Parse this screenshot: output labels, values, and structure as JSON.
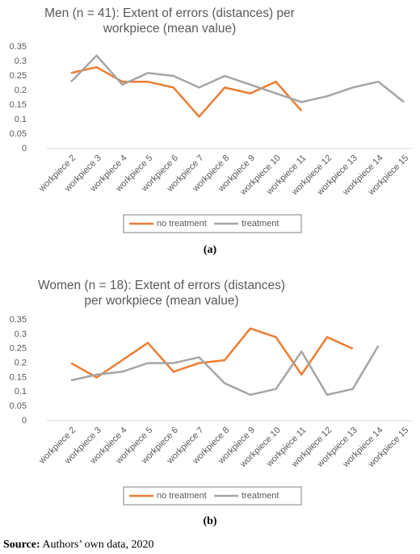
{
  "chart_data": [
    {
      "type": "line",
      "title": "Men (n = 41): Extent of errors (distances) per workpiece (mean value)",
      "categories": [
        "workpiece 2",
        "workpiece 3",
        "workpiece 4",
        "workpiece 5",
        "workpiece 6",
        "workpiece 7",
        "workpiece 8",
        "workpiece 9",
        "workpiece 10",
        "workpiece 11",
        "workpiece 12",
        "workpiece 13",
        "workpiece 14",
        "workpiece 15"
      ],
      "series": [
        {
          "name": "no treatment",
          "color": "#ed7d31",
          "values": [
            0.26,
            0.28,
            0.23,
            0.23,
            0.21,
            0.11,
            0.21,
            0.19,
            0.23,
            0.13,
            null,
            null,
            null,
            null
          ]
        },
        {
          "name": "treatment",
          "color": "#a5a5a5",
          "values": [
            0.23,
            0.32,
            0.22,
            0.26,
            0.25,
            0.21,
            0.25,
            0.22,
            0.19,
            0.16,
            0.18,
            0.21,
            0.23,
            0.16
          ]
        }
      ],
      "ylim": [
        0,
        0.35
      ],
      "yticks": [
        0,
        0.05,
        0.1,
        0.15,
        0.2,
        0.25,
        0.3,
        0.35
      ],
      "grid": false,
      "legend": "bottom",
      "caption": "(a)"
    },
    {
      "type": "line",
      "title": "Women (n = 18): Extent of errors (distances) per workpiece (mean value)",
      "categories": [
        "workpiece 2",
        "workpiece 3",
        "workpiece 4",
        "workpiece 5",
        "workpiece 6",
        "workpiece 7",
        "workpiece 8",
        "workpiece 9",
        "workpiece 10",
        "workpiece 11",
        "workpiece 12",
        "workpiece 13",
        "workpiece 14",
        "workpiece 15"
      ],
      "series": [
        {
          "name": "no treatment",
          "color": "#ed7d31",
          "values": [
            0.2,
            0.15,
            0.21,
            0.27,
            0.17,
            0.2,
            0.21,
            0.32,
            0.29,
            0.16,
            0.29,
            0.25,
            null,
            null
          ]
        },
        {
          "name": "treatment",
          "color": "#a5a5a5",
          "values": [
            0.14,
            0.16,
            0.17,
            0.2,
            0.2,
            0.22,
            0.13,
            0.09,
            0.11,
            0.24,
            0.09,
            0.11,
            0.26,
            null
          ]
        }
      ],
      "ylim": [
        0,
        0.35
      ],
      "yticks": [
        0,
        0.05,
        0.1,
        0.15,
        0.2,
        0.25,
        0.3,
        0.35
      ],
      "grid": false,
      "legend": "bottom",
      "caption": "(b)"
    }
  ],
  "source": {
    "label": "Source:",
    "text": "Authors’ own data, 2020"
  }
}
